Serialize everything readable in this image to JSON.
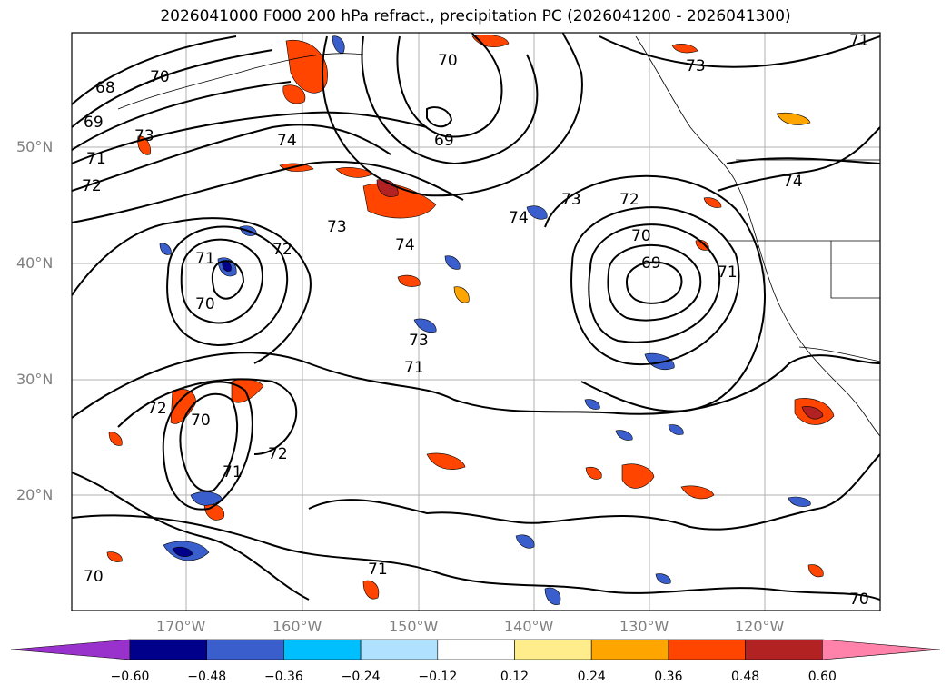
{
  "title": "2026041000 F000 200 hPa refract., precipitation PC (2026041200 - 2026041300)",
  "map": {
    "lat_labels": [
      "50°N",
      "40°N",
      "30°N",
      "20°N"
    ],
    "lon_labels": [
      "170°W",
      "160°W",
      "150°W",
      "140°W",
      "130°W",
      "120°W"
    ],
    "contour_labels": [
      "68",
      "69",
      "70",
      "71",
      "72",
      "73",
      "74",
      "70",
      "69",
      "70",
      "71",
      "72",
      "73",
      "74",
      "73",
      "72",
      "70",
      "69",
      "71",
      "73",
      "74",
      "70",
      "71",
      "72",
      "73",
      "74",
      "70",
      "71",
      "72",
      "71",
      "70",
      "71"
    ]
  },
  "colorbar": {
    "colors": [
      "#9932cc",
      "#00008b",
      "#3a5fcd",
      "#00bfff",
      "#b0e2ff",
      "#ffffff",
      "#ffec8b",
      "#ffa500",
      "#ff4500",
      "#b22222",
      "#ff82ab"
    ],
    "labels": [
      "−0.60",
      "−0.48",
      "−0.36",
      "−0.24",
      "−0.12",
      "0.12",
      "0.24",
      "0.36",
      "0.48",
      "0.60"
    ]
  }
}
